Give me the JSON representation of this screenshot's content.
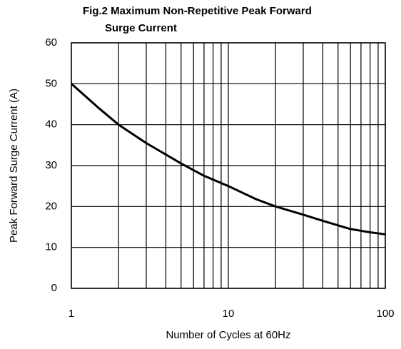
{
  "chart_data": {
    "type": "line",
    "title": [
      "Fig.2 Maximum Non-Repetitive Peak Forward",
      "Surge   Current"
    ],
    "xlabel": "Number of Cycles at 60Hz",
    "ylabel": "Peak Forward Surge Current (A)",
    "xscale": "log",
    "xlim": [
      1,
      100
    ],
    "ylim": [
      0,
      60
    ],
    "xticks": [
      1,
      10,
      100
    ],
    "xminor": [
      2,
      3,
      4,
      5,
      6,
      7,
      8,
      9,
      20,
      30,
      40,
      50,
      60,
      70,
      80,
      90
    ],
    "yticks": [
      0,
      10,
      20,
      30,
      40,
      50,
      60
    ],
    "grid": true,
    "series": [
      {
        "color": "#000000",
        "x": [
          1,
          1.5,
          2,
          3,
          5,
          7,
          10,
          15,
          20,
          30,
          40,
          60,
          80,
          100
        ],
        "values": [
          50,
          44,
          40,
          35.5,
          30.5,
          27.5,
          25,
          21.8,
          20,
          18,
          16.5,
          14.5,
          13.7,
          13.2
        ]
      }
    ]
  }
}
